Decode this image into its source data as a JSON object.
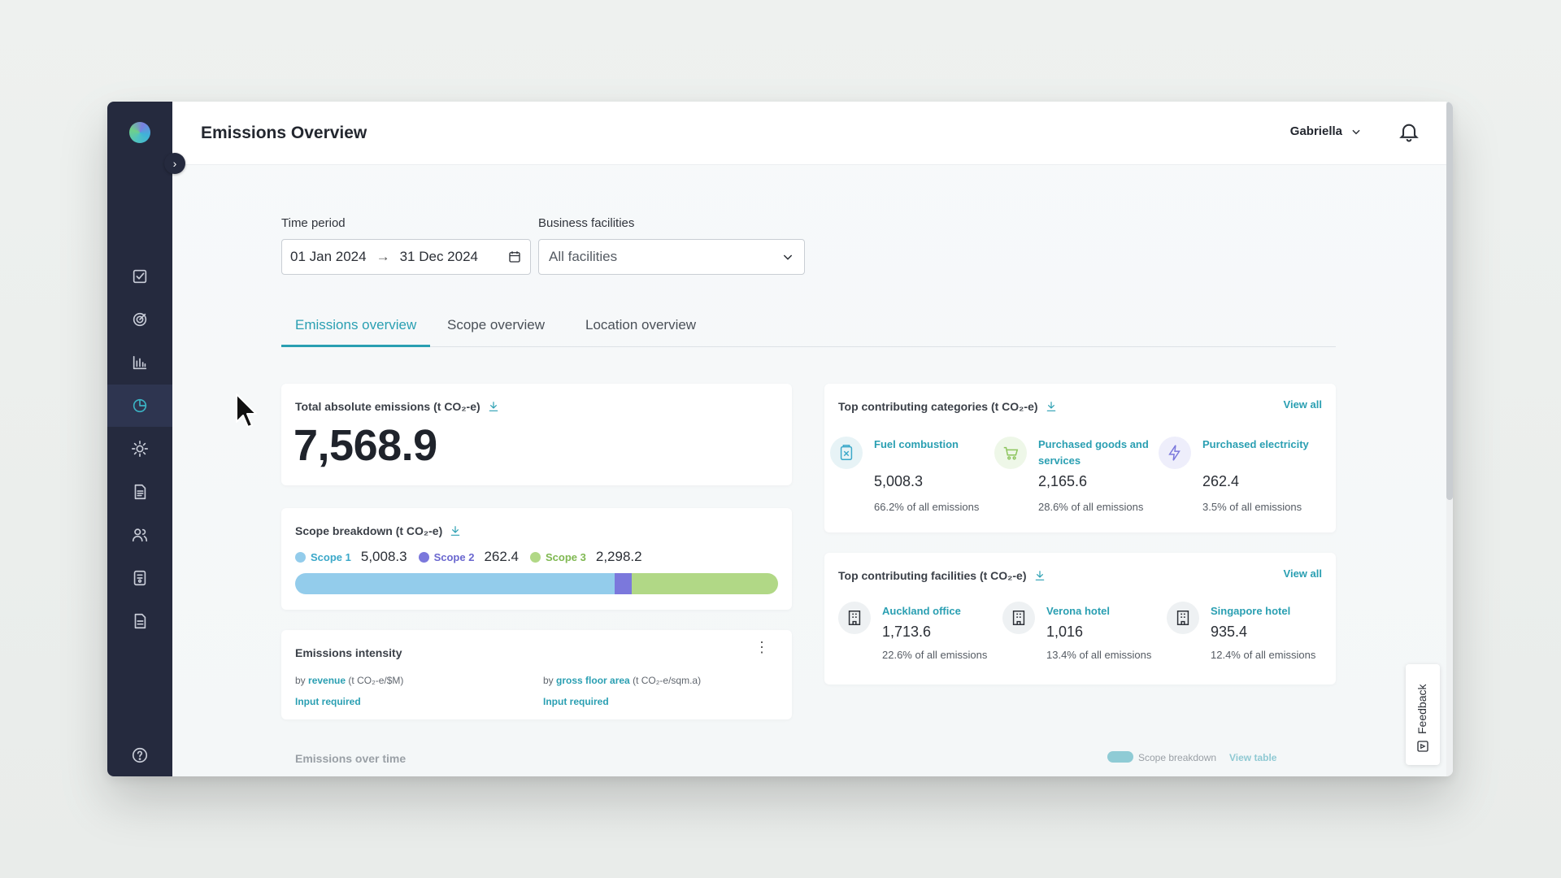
{
  "app": {
    "title": "Emissions Overview",
    "user": "Gabriella",
    "nav": [
      "checklist-icon",
      "target-icon",
      "bar-chart-icon",
      "pie-chart-icon",
      "sun-icon",
      "document-icon",
      "users-icon",
      "report-icon",
      "file-icon"
    ],
    "help_icon": "help-icon"
  },
  "filters": {
    "time_period_label": "Time period",
    "date_from": "01 Jan 2024",
    "date_to": "31 Dec 2024",
    "facilities_label": "Business facilities",
    "facilities_value": "All facilities"
  },
  "tabs": [
    {
      "label": "Emissions overview",
      "active": true
    },
    {
      "label": "Scope overview",
      "active": false
    },
    {
      "label": "Location overview",
      "active": false
    }
  ],
  "total": {
    "title": "Total absolute emissions (t CO₂-e)",
    "value": "7,568.9"
  },
  "scope": {
    "title": "Scope breakdown (t CO₂-e)",
    "items": [
      {
        "label": "Scope 1",
        "value": "5,008.3",
        "color": "#93cceb",
        "share": 0.662
      },
      {
        "label": "Scope 2",
        "value": "262.4",
        "color": "#7b78dc",
        "share": 0.035
      },
      {
        "label": "Scope 3",
        "value": "2,298.2",
        "color": "#b1d886",
        "share": 0.303
      }
    ]
  },
  "intensity": {
    "title": "Emissions intensity",
    "by": "by",
    "revenue_link": "revenue",
    "revenue_unit": "(t CO₂-e/$M)",
    "area_link": "gross floor area",
    "area_unit": "(t CO₂-e/sqm.a)",
    "input_required": "Input required"
  },
  "categories": {
    "title": "Top contributing categories (t CO₂-e)",
    "view_all": "View all",
    "items": [
      {
        "name": "Fuel combustion",
        "value": "5,008.3",
        "pct": "66.2% of all emissions",
        "icon": "fuel-icon",
        "color": "#e7f3f6"
      },
      {
        "name": "Purchased goods and services",
        "value": "2,165.6",
        "pct": "28.6% of all emissions",
        "icon": "cart-icon",
        "color": "#eef7e8"
      },
      {
        "name": "Purchased electricity",
        "value": "262.4",
        "pct": "3.5% of all emissions",
        "icon": "lightning-icon",
        "color": "#eeeefb"
      }
    ]
  },
  "facilities": {
    "title": "Top contributing facilities (t CO₂-e)",
    "view_all": "View all",
    "items": [
      {
        "name": "Auckland office",
        "value": "1,713.6",
        "pct": "22.6% of all emissions"
      },
      {
        "name": "Verona hotel",
        "value": "1,016",
        "pct": "13.4% of all emissions"
      },
      {
        "name": "Singapore hotel",
        "value": "935.4",
        "pct": "12.4% of all emissions"
      }
    ]
  },
  "bottom": {
    "title": "Emissions over time",
    "toggle_label": "Scope breakdown",
    "view_table": "View table"
  },
  "feedback": "Feedback"
}
